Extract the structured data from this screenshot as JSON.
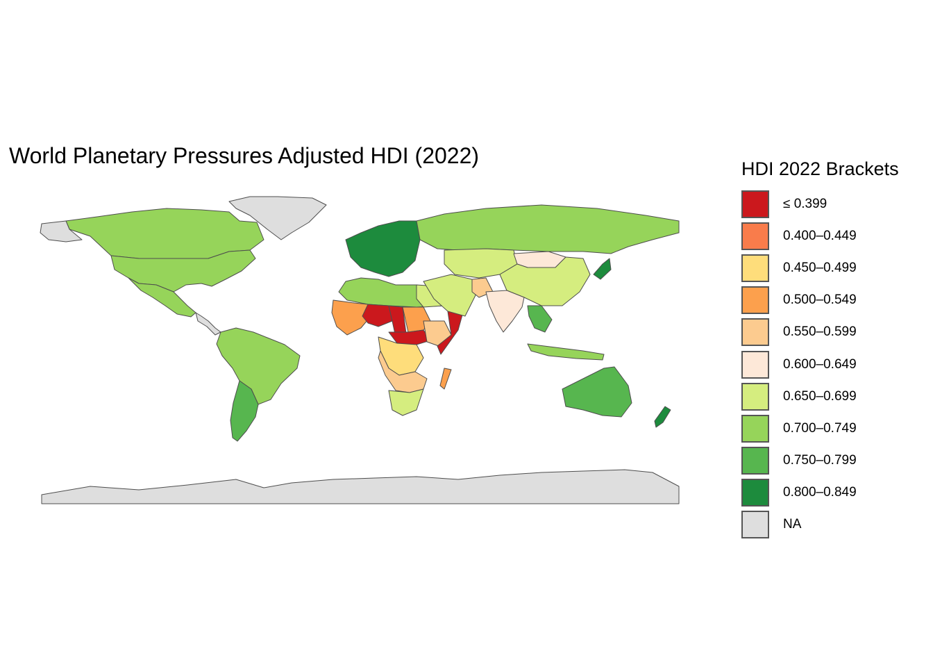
{
  "map": {
    "title": "World Planetary Pressures Adjusted HDI (2022)",
    "regions": [
      {
        "name": "Canada",
        "bracket": "0.700–0.749",
        "color": "#96d45a"
      },
      {
        "name": "United States",
        "bracket": "0.700–0.749",
        "color": "#96d45a"
      },
      {
        "name": "Mexico",
        "bracket": "0.700–0.749",
        "color": "#96d45a"
      },
      {
        "name": "Greenland",
        "bracket": "NA",
        "color": "#dedede"
      },
      {
        "name": "Brazil",
        "bracket": "0.700–0.749",
        "color": "#96d45a"
      },
      {
        "name": "Argentina",
        "bracket": "0.750–0.799",
        "color": "#57b64f"
      },
      {
        "name": "Russia",
        "bracket": "0.700–0.749",
        "color": "#96d45a"
      },
      {
        "name": "China",
        "bracket": "0.650–0.699",
        "color": "#d5ed7f"
      },
      {
        "name": "Mongolia",
        "bracket": "0.600–0.649",
        "color": "#fde8d8"
      },
      {
        "name": "India",
        "bracket": "0.600–0.649",
        "color": "#fde8d8"
      },
      {
        "name": "Australia",
        "bracket": "0.750–0.799",
        "color": "#57b64f"
      },
      {
        "name": "New Zealand",
        "bracket": "0.800–0.849",
        "color": "#1d8b3d"
      },
      {
        "name": "Japan",
        "bracket": "0.800–0.849",
        "color": "#1d8b3d"
      },
      {
        "name": "Chad",
        "bracket": "≤ 0.399",
        "color": "#cb181d"
      },
      {
        "name": "Niger",
        "bracket": "≤ 0.399",
        "color": "#cb181d"
      },
      {
        "name": "Somalia",
        "bracket": "≤ 0.399",
        "color": "#cb181d"
      },
      {
        "name": "Sudan",
        "bracket": "0.500–0.549",
        "color": "#fca04d"
      },
      {
        "name": "Algeria",
        "bracket": "0.700–0.749",
        "color": "#96d45a"
      },
      {
        "name": "Egypt",
        "bracket": "0.650–0.699",
        "color": "#d5ed7f"
      },
      {
        "name": "DR Congo",
        "bracket": "0.450–0.499",
        "color": "#fedd7b"
      },
      {
        "name": "South Africa",
        "bracket": "0.650–0.699",
        "color": "#d5ed7f"
      },
      {
        "name": "Antarctica",
        "bracket": "NA",
        "color": "#dedede"
      }
    ]
  },
  "legend": {
    "title": "HDI 2022 Brackets",
    "items": [
      {
        "label": "≤ 0.399",
        "color": "#cb181d"
      },
      {
        "label": "0.400–0.449",
        "color": "#f97c4b"
      },
      {
        "label": "0.450–0.499",
        "color": "#fedd7b"
      },
      {
        "label": "0.500–0.549",
        "color": "#fca04d"
      },
      {
        "label": "0.550–0.599",
        "color": "#fccb8f"
      },
      {
        "label": "0.600–0.649",
        "color": "#fde8d8"
      },
      {
        "label": "0.650–0.699",
        "color": "#d5ed7f"
      },
      {
        "label": "0.700–0.749",
        "color": "#96d45a"
      },
      {
        "label": "0.750–0.799",
        "color": "#57b64f"
      },
      {
        "label": "0.800–0.849",
        "color": "#1d8b3d"
      },
      {
        "label": "NA",
        "color": "#dedede"
      }
    ]
  }
}
